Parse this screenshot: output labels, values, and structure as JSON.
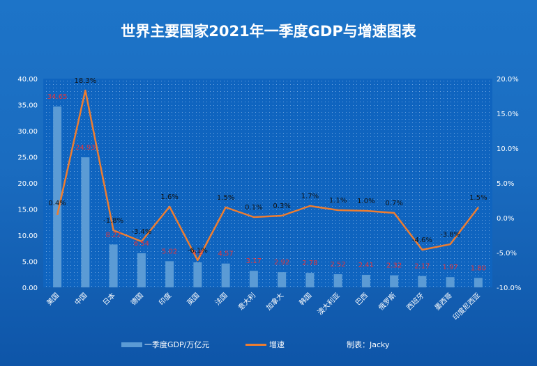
{
  "chart_data": {
    "type": "bar",
    "title": "世界主要国家2021年一季度GDP与增速图表",
    "categories": [
      "美国",
      "中国",
      "日本",
      "德国",
      "印度",
      "英国",
      "法国",
      "意大利",
      "加拿大",
      "韩国",
      "澳大利亚",
      "巴西",
      "俄罗斯",
      "西班牙",
      "墨西哥",
      "印度尼西亚"
    ],
    "series": [
      {
        "name": "一季度GDP/万亿元",
        "kind": "bar",
        "axis": "left",
        "color": "#5b9bd5",
        "values": [
          34.65,
          24.93,
          8.22,
          6.54,
          5.02,
          4.8,
          4.57,
          3.17,
          2.92,
          2.78,
          2.52,
          2.41,
          2.32,
          2.17,
          1.97,
          1.8
        ],
        "labels": [
          "34.65",
          "24.93",
          "8.22",
          "6.54",
          "5.02",
          "4.8",
          "4.57",
          "3.17",
          "2.92",
          "2.78",
          "2.52",
          "2.41",
          "2.32",
          "2.17",
          "1.97",
          "1.80"
        ]
      },
      {
        "name": "增速",
        "kind": "line",
        "axis": "right",
        "color": "#ed7d31",
        "values": [
          0.4,
          18.3,
          -1.8,
          -3.4,
          1.6,
          -6.1,
          1.5,
          0.1,
          0.3,
          1.7,
          1.1,
          1.0,
          0.7,
          -4.6,
          -3.8,
          1.5
        ],
        "labels": [
          "0.4%",
          "18.3%",
          "-1.8%",
          "-3.4%",
          "1.6%",
          "-6.1%",
          "1.5%",
          "0.1%",
          "0.3%",
          "1.7%",
          "1.1%",
          "1.0%",
          "0.7%",
          "-4.6%",
          "-3.8%",
          "1.5%"
        ]
      }
    ],
    "ylim_left": [
      0,
      40
    ],
    "yticks_left": [
      "0.00",
      "5.00",
      "10.00",
      "15.00",
      "20.00",
      "25.00",
      "30.00",
      "35.00",
      "40.00"
    ],
    "ylim_right": [
      -10,
      20
    ],
    "yticks_right": [
      "-10.0%",
      "-5.0%",
      "0.0%",
      "5.0%",
      "10.0%",
      "15.0%",
      "20.0%"
    ],
    "legend_position": "bottom",
    "annotation": "制表：Jacky",
    "plot_background": "dotted"
  }
}
